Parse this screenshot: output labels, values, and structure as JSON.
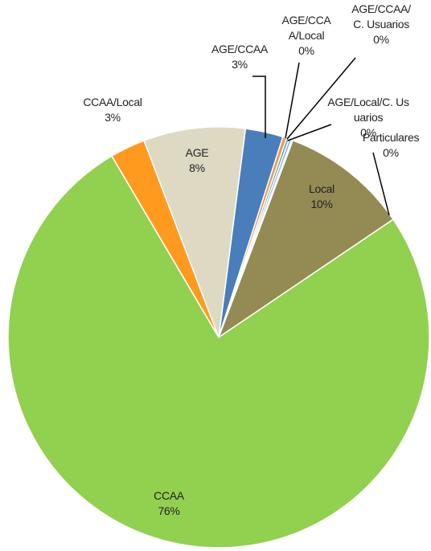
{
  "chart_data": {
    "type": "pie",
    "categories": [
      "AGE/CCAA",
      "AGE/CCAA/Local",
      "AGE/CCAA/C. Usuarios",
      "AGE/Local/C. Usuarios",
      "Particulares",
      "Local",
      "CCAA",
      "CCAA/Local",
      "AGE"
    ],
    "values": [
      2.9,
      0.3,
      0.2,
      0.2,
      0.1,
      9.8,
      76.0,
      2.7,
      7.8
    ],
    "value_labels": [
      "3%",
      "0%",
      "0%",
      "0%",
      "0%",
      "10%",
      "76%",
      "3%",
      "8%"
    ],
    "colors": [
      "#4a7ebb",
      "#f79646",
      "#4bacc6",
      "#8cb3d9",
      "#c0504d",
      "#948a54",
      "#92d050",
      "#ff9a1f",
      "#ddd9c3"
    ]
  }
}
